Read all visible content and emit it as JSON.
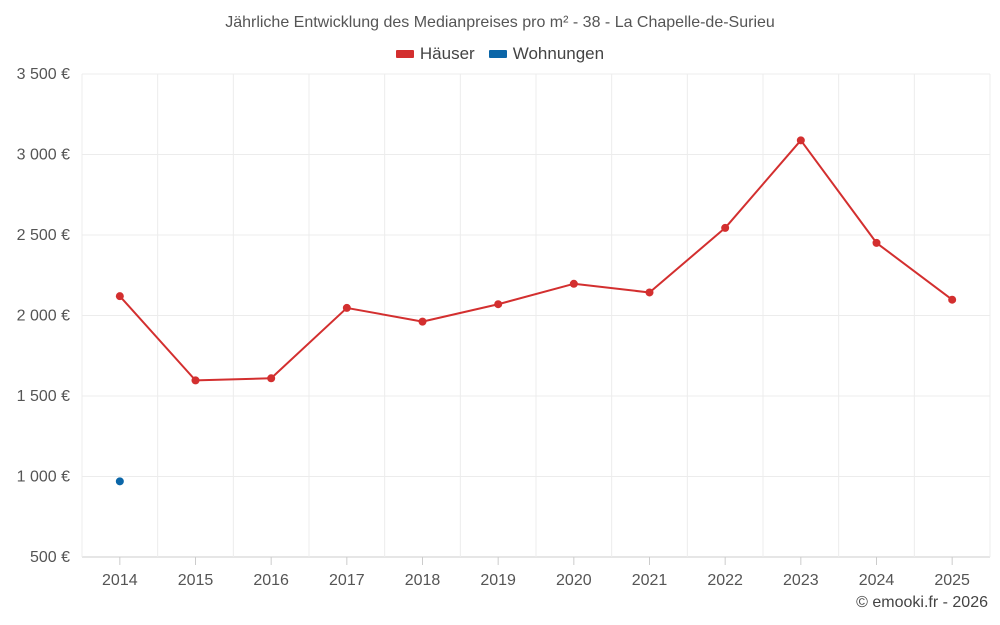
{
  "chart_data": {
    "type": "line",
    "title": "Jährliche Entwicklung des Medianpreises pro m² - 38 - La Chapelle-de-Surieu",
    "categories": [
      "2014",
      "2015",
      "2016",
      "2017",
      "2018",
      "2019",
      "2020",
      "2021",
      "2022",
      "2023",
      "2024",
      "2025"
    ],
    "series": [
      {
        "name": "Häuser",
        "color": "#d32f2f",
        "values": [
          2120,
          1597,
          1610,
          2047,
          1962,
          2070,
          2197,
          2143,
          2544,
          3088,
          2451,
          2098
        ]
      },
      {
        "name": "Wohnungen",
        "color": "#0b66a8",
        "values": [
          970,
          null,
          null,
          null,
          null,
          null,
          null,
          null,
          null,
          null,
          null,
          null
        ]
      }
    ],
    "ylim": [
      500,
      3500
    ],
    "yticks": [
      500,
      1000,
      1500,
      2000,
      2500,
      3000,
      3500
    ],
    "ytick_labels": [
      "500 €",
      "1 000 €",
      "1 500 €",
      "2 000 €",
      "2 500 €",
      "3 000 €",
      "3 500 €"
    ],
    "xlabel": "",
    "ylabel": "",
    "grid": true,
    "legend_position": "top-center"
  },
  "credit": "© emooki.fr - 2026"
}
